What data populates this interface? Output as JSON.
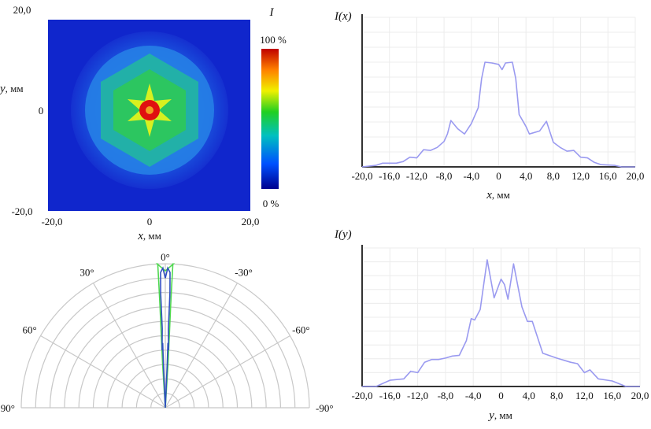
{
  "chart_data": [
    {
      "type": "heatmap",
      "title": "I",
      "xlabel_var": "x",
      "xlabel_unit": ", мм",
      "ylabel_var": "y",
      "ylabel_unit": ", мм",
      "xlim": [
        -20,
        20
      ],
      "ylim": [
        -20,
        20
      ],
      "x_ticks": [
        "-20,0",
        "0",
        "20,0"
      ],
      "y_ticks": [
        "20,0",
        "0",
        "-20,0"
      ],
      "colorbar": {
        "max_label": "100 %",
        "min_label": "0 %",
        "colormap": [
          "#00008f",
          "#0050ff",
          "#00c0c0",
          "#20d020",
          "#f0f000",
          "#ff8000",
          "#c00000"
        ]
      },
      "description_values": {
        "peak_center": [
          0,
          0
        ],
        "pattern": "hexagonal"
      }
    },
    {
      "type": "line",
      "ylabel_fn": "I",
      "ylabel_arg": "x",
      "xlabel_var": "x",
      "xlabel_unit": ", мм",
      "xlim": [
        -20,
        20
      ],
      "ylim": [
        0,
        1
      ],
      "x_ticks": [
        "-20,0",
        "-16,0",
        "-12,0",
        "-8,0",
        "-4,0",
        "0",
        "4,0",
        "8,0",
        "12,0",
        "16,0",
        "20,0"
      ],
      "grid": true,
      "color": "#9a9af0",
      "x": [
        -20,
        -18,
        -17,
        -15,
        -14,
        -13,
        -12,
        -11,
        -10,
        -9,
        -8,
        -7.5,
        -7,
        -6,
        -5,
        -4,
        -3,
        -2.5,
        -2,
        -1,
        0,
        0.5,
        1,
        2,
        2.5,
        3,
        4,
        4.5,
        6,
        7,
        8,
        9,
        10,
        11,
        12,
        13,
        14,
        15,
        17,
        18,
        20
      ],
      "y": [
        0,
        0.01,
        0.025,
        0.025,
        0.035,
        0.065,
        0.06,
        0.115,
        0.11,
        0.13,
        0.17,
        0.22,
        0.31,
        0.255,
        0.22,
        0.29,
        0.395,
        0.59,
        0.7,
        0.695,
        0.685,
        0.65,
        0.695,
        0.7,
        0.59,
        0.35,
        0.27,
        0.22,
        0.24,
        0.305,
        0.165,
        0.13,
        0.105,
        0.11,
        0.065,
        0.06,
        0.03,
        0.015,
        0.01,
        0,
        0
      ]
    },
    {
      "type": "line",
      "ylabel_fn": "I",
      "ylabel_arg": "y",
      "xlabel_var": "y",
      "xlabel_unit": ", мм",
      "xlim": [
        -20,
        20
      ],
      "ylim": [
        0,
        1
      ],
      "x_ticks": [
        "-20,0",
        "-16,0",
        "-12,0",
        "-8,0",
        "-4,0",
        "0",
        "4,0",
        "8,0",
        "12,0",
        "16,0",
        "20,0"
      ],
      "grid": true,
      "color": "#9a9af0",
      "x": [
        -20,
        -18,
        -16,
        -14,
        -13,
        -12,
        -11,
        -10,
        -9,
        -8,
        -7,
        -6,
        -5,
        -4.3,
        -3.8,
        -3,
        -2,
        -1,
        0,
        0.5,
        1,
        1.8,
        3,
        3.8,
        4.5,
        6,
        8,
        10,
        11,
        12,
        12.8,
        14,
        16,
        18,
        20
      ],
      "y": [
        0,
        0,
        0.045,
        0.055,
        0.11,
        0.1,
        0.175,
        0.195,
        0.195,
        0.205,
        0.22,
        0.225,
        0.33,
        0.49,
        0.48,
        0.555,
        0.915,
        0.64,
        0.775,
        0.735,
        0.63,
        0.885,
        0.575,
        0.47,
        0.47,
        0.24,
        0.205,
        0.175,
        0.165,
        0.1,
        0.12,
        0.055,
        0.04,
        0,
        0
      ]
    },
    {
      "type": "polar",
      "angle_ticks": [
        {
          "deg": 0,
          "label": "0°"
        },
        {
          "deg": 30,
          "label": "30°"
        },
        {
          "deg": -30,
          "label": "-30°"
        },
        {
          "deg": 60,
          "label": "60°"
        },
        {
          "deg": -60,
          "label": "-60°"
        },
        {
          "deg": 90,
          "label": "90°"
        },
        {
          "deg": -90,
          "label": "-90°"
        }
      ],
      "rings": 10,
      "rlim": [
        0,
        1
      ],
      "series": [
        {
          "name": "green",
          "color": "#4fd84f",
          "theta": [
            0,
            3.5,
            3.2,
            3.0,
            3.0,
            3.0,
            3.0,
            3.2,
            0,
            -3.2,
            -3.0,
            -3.0,
            -3.0,
            -3.0,
            -3.2,
            -3.5,
            0
          ],
          "r": [
            0,
            0.3,
            0.5,
            0.7,
            0.85,
            0.95,
            1.0,
            1.0,
            0.95,
            1.0,
            1.0,
            0.95,
            0.85,
            0.7,
            0.5,
            0.3,
            0
          ]
        },
        {
          "name": "blue",
          "color": "#3050c0",
          "theta": [
            0,
            2.5,
            2.3,
            3.2,
            2.2,
            2.3,
            2.0,
            1.0,
            0,
            -1.0,
            -2.0,
            -2.3,
            -2.2,
            -3.2,
            -2.3,
            -2.5,
            0
          ],
          "r": [
            0,
            0.3,
            0.45,
            0.4,
            0.55,
            0.8,
            0.94,
            0.97,
            0.9,
            0.97,
            0.94,
            0.8,
            0.55,
            0.4,
            0.45,
            0.3,
            0
          ]
        }
      ]
    }
  ]
}
